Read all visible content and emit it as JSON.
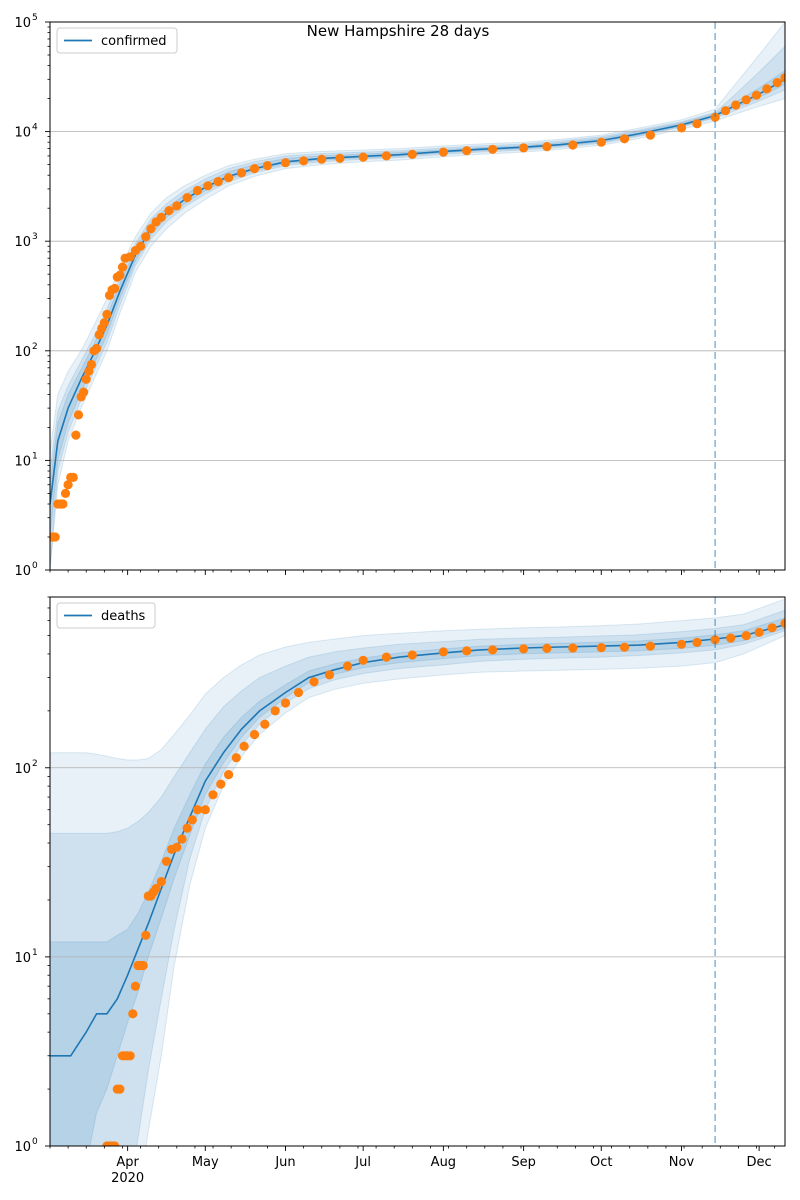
{
  "title": "New Hampshire 28 days",
  "colors": {
    "model": "#1f77b4",
    "observed": "#ff7f0e",
    "band": "#1f77b4",
    "grid": "#b0b0b0",
    "forecast_line": "#1f77b4"
  },
  "chart_data": [
    {
      "type": "line",
      "yscale": "log",
      "ylim": [
        1,
        100000
      ],
      "xlim": [
        "2020-03-02",
        "2020-12-11"
      ],
      "forecast_start": "2020-11-14",
      "x_tick_labels": [
        "Apr",
        "May",
        "Jun",
        "Jul",
        "Aug",
        "Sep",
        "Oct",
        "Nov",
        "Dec"
      ],
      "x_ticks": [
        "2020-04-01",
        "2020-05-01",
        "2020-06-01",
        "2020-07-01",
        "2020-08-01",
        "2020-09-01",
        "2020-10-01",
        "2020-11-01",
        "2020-12-01"
      ],
      "year_label": "2020",
      "y_tick_labels": [
        "10",
        "10",
        "10",
        "10",
        "10",
        "10"
      ],
      "y_tick_exponents": [
        "0",
        "1",
        "2",
        "3",
        "4",
        "5"
      ],
      "y_ticks": [
        1,
        10,
        100,
        1000,
        10000,
        100000
      ],
      "grid": "y",
      "legend": {
        "label": "confirmed",
        "placement": "top-left"
      },
      "model": {
        "dates": [
          "2020-03-02",
          "2020-03-05",
          "2020-03-09",
          "2020-03-14",
          "2020-03-19",
          "2020-03-24",
          "2020-03-29",
          "2020-04-04",
          "2020-04-10",
          "2020-04-16",
          "2020-04-23",
          "2020-05-01",
          "2020-05-10",
          "2020-05-20",
          "2020-06-01",
          "2020-06-15",
          "2020-07-01",
          "2020-07-15",
          "2020-08-01",
          "2020-08-15",
          "2020-09-01",
          "2020-09-15",
          "2020-10-01",
          "2020-10-15",
          "2020-11-01",
          "2020-11-14",
          "2020-11-20",
          "2020-12-01",
          "2020-12-11"
        ],
        "median": [
          4,
          15,
          30,
          55,
          95,
          170,
          350,
          750,
          1300,
          1800,
          2400,
          3100,
          3900,
          4600,
          5300,
          5700,
          5950,
          6150,
          6600,
          6900,
          7200,
          7600,
          8300,
          9500,
          11500,
          14000,
          16500,
          22000,
          30000
        ],
        "bands": [
          {
            "lower": [
              1,
              6,
              15,
              30,
              55,
              100,
              220,
              520,
              900,
              1300,
              1800,
              2400,
              3200,
              3900,
              4600,
              5000,
              5300,
              5500,
              5900,
              6200,
              6500,
              6900,
              7500,
              8600,
              10500,
              12500,
              14000,
              17000,
              20000
            ],
            "upper": [
              12,
              40,
              65,
              100,
              170,
              300,
              560,
              1100,
              1800,
              2500,
              3200,
              4000,
              4900,
              5600,
              6300,
              6600,
              6800,
              7000,
              7400,
              7700,
              8000,
              8500,
              9300,
              10700,
              12800,
              16000,
              24000,
              50000,
              100000
            ]
          },
          {
            "lower": [
              1,
              8,
              18,
              36,
              65,
              120,
              260,
              600,
              1050,
              1500,
              2050,
              2700,
              3500,
              4200,
              4900,
              5300,
              5600,
              5800,
              6200,
              6500,
              6800,
              7200,
              7800,
              9000,
              11000,
              13300,
              15000,
              19000,
              24000
            ],
            "upper": [
              8,
              28,
              48,
              80,
              135,
              240,
              460,
              950,
              1600,
              2200,
              2900,
              3700,
              4600,
              5300,
              6000,
              6300,
              6500,
              6700,
              7100,
              7400,
              7700,
              8200,
              9000,
              10300,
              12300,
              15000,
              20000,
              35000,
              60000
            ]
          },
          {
            "lower": [
              2,
              10,
              22,
              42,
              75,
              140,
              300,
              660,
              1150,
              1650,
              2200,
              2900,
              3700,
              4400,
              5100,
              5500,
              5750,
              5950,
              6400,
              6700,
              7000,
              7400,
              8000,
              9200,
              11200,
              13600,
              15800,
              20500,
              27000
            ],
            "upper": [
              6,
              22,
              40,
              68,
              115,
              205,
              410,
              860,
              1450,
              2000,
              2650,
              3400,
              4300,
              5000,
              5700,
              6000,
              6250,
              6450,
              6850,
              7150,
              7450,
              7900,
              8700,
              10000,
              12000,
              14600,
              17500,
              25000,
              36000
            ]
          }
        ]
      },
      "observed": {
        "dates": [
          "2020-03-02",
          "2020-03-03",
          "2020-03-04",
          "2020-03-05",
          "2020-03-06",
          "2020-03-07",
          "2020-03-08",
          "2020-03-09",
          "2020-03-10",
          "2020-03-11",
          "2020-03-12",
          "2020-03-13",
          "2020-03-14",
          "2020-03-15",
          "2020-03-16",
          "2020-03-17",
          "2020-03-18",
          "2020-03-19",
          "2020-03-20",
          "2020-03-21",
          "2020-03-22",
          "2020-03-23",
          "2020-03-24",
          "2020-03-25",
          "2020-03-26",
          "2020-03-27",
          "2020-03-28",
          "2020-03-29",
          "2020-03-30",
          "2020-03-31",
          "2020-04-02",
          "2020-04-04",
          "2020-04-06",
          "2020-04-08",
          "2020-04-10",
          "2020-04-12",
          "2020-04-14",
          "2020-04-17",
          "2020-04-20",
          "2020-04-24",
          "2020-04-28",
          "2020-05-02",
          "2020-05-06",
          "2020-05-10",
          "2020-05-15",
          "2020-05-20",
          "2020-05-25",
          "2020-06-01",
          "2020-06-08",
          "2020-06-15",
          "2020-06-22",
          "2020-07-01",
          "2020-07-10",
          "2020-07-20",
          "2020-08-01",
          "2020-08-10",
          "2020-08-20",
          "2020-09-01",
          "2020-09-10",
          "2020-09-20",
          "2020-10-01",
          "2020-10-10",
          "2020-10-20",
          "2020-11-01",
          "2020-11-07",
          "2020-11-14",
          "2020-11-18",
          "2020-11-22",
          "2020-11-26",
          "2020-11-30",
          "2020-12-04",
          "2020-12-08",
          "2020-12-11"
        ],
        "values": [
          2,
          2,
          2,
          4,
          4,
          4,
          5,
          6,
          7,
          7,
          17,
          26,
          38,
          42,
          55,
          65,
          75,
          100,
          105,
          140,
          160,
          180,
          215,
          320,
          360,
          370,
          470,
          490,
          580,
          700,
          720,
          820,
          900,
          1100,
          1300,
          1500,
          1650,
          1900,
          2100,
          2500,
          2900,
          3200,
          3500,
          3800,
          4200,
          4600,
          4900,
          5200,
          5400,
          5600,
          5700,
          5850,
          6000,
          6200,
          6500,
          6700,
          6900,
          7100,
          7300,
          7550,
          8000,
          8600,
          9300,
          10800,
          11800,
          13500,
          15500,
          17500,
          19500,
          21500,
          24500,
          28000,
          31000
        ]
      }
    },
    {
      "type": "line",
      "yscale": "log",
      "ylim": [
        1,
        800
      ],
      "xlim": [
        "2020-03-02",
        "2020-12-11"
      ],
      "forecast_start": "2020-11-14",
      "x_tick_labels": [
        "Apr",
        "May",
        "Jun",
        "Jul",
        "Aug",
        "Sep",
        "Oct",
        "Nov",
        "Dec"
      ],
      "x_ticks": [
        "2020-04-01",
        "2020-05-01",
        "2020-06-01",
        "2020-07-01",
        "2020-08-01",
        "2020-09-01",
        "2020-10-01",
        "2020-11-01",
        "2020-12-01"
      ],
      "year_label": "2020",
      "y_tick_labels": [
        "10",
        "10",
        "10"
      ],
      "y_tick_exponents": [
        "0",
        "1",
        "2"
      ],
      "y_ticks": [
        1,
        10,
        100
      ],
      "grid": "y",
      "legend": {
        "label": "deaths",
        "placement": "top-left"
      },
      "model": {
        "dates": [
          "2020-03-02",
          "2020-03-10",
          "2020-03-16",
          "2020-03-20",
          "2020-03-24",
          "2020-03-28",
          "2020-04-01",
          "2020-04-05",
          "2020-04-09",
          "2020-04-14",
          "2020-04-19",
          "2020-04-25",
          "2020-05-01",
          "2020-05-08",
          "2020-05-15",
          "2020-05-22",
          "2020-06-01",
          "2020-06-10",
          "2020-06-20",
          "2020-07-01",
          "2020-07-15",
          "2020-08-01",
          "2020-08-15",
          "2020-09-01",
          "2020-09-15",
          "2020-10-01",
          "2020-10-15",
          "2020-11-01",
          "2020-11-14",
          "2020-11-25",
          "2020-12-11"
        ],
        "median": [
          3,
          3,
          4,
          5,
          5,
          6,
          8,
          11,
          15,
          23,
          35,
          55,
          85,
          120,
          160,
          200,
          250,
          300,
          330,
          360,
          385,
          405,
          420,
          430,
          435,
          440,
          445,
          460,
          480,
          500,
          570
        ],
        "bands": [
          {
            "lower": [
              0.5,
              0.5,
              0.5,
              0.5,
              0.5,
              0.5,
              0.5,
              0.5,
              1.2,
              3,
              9,
              24,
              48,
              80,
              115,
              150,
              195,
              235,
              260,
              280,
              295,
              310,
              320,
              325,
              328,
              332,
              336,
              345,
              360,
              400,
              500
            ],
            "upper": [
              120,
              120,
              120,
              118,
              115,
              112,
              110,
              110,
              112,
              125,
              150,
              190,
              245,
              300,
              350,
              395,
              435,
              460,
              480,
              500,
              515,
              530,
              540,
              550,
              555,
              565,
              575,
              600,
              620,
              650,
              780
            ]
          },
          {
            "lower": [
              0.5,
              0.5,
              0.5,
              0.5,
              0.5,
              0.5,
              0.5,
              1.1,
              2.5,
              6,
              14,
              33,
              60,
              95,
              132,
              170,
              220,
              262,
              292,
              315,
              335,
              350,
              365,
              375,
              380,
              385,
              392,
              405,
              420,
              450,
              530
            ],
            "upper": [
              45,
              45,
              45,
              45,
              45,
              46,
              48,
              52,
              58,
              70,
              90,
              120,
              160,
              210,
              255,
              300,
              345,
              385,
              410,
              430,
              450,
              465,
              478,
              485,
              490,
              498,
              505,
              525,
              545,
              570,
              680
            ]
          },
          {
            "lower": [
              0.5,
              0.5,
              0.8,
              1.5,
              2,
              3,
              4.5,
              6.5,
              10,
              16,
              26,
              44,
              72,
              106,
              145,
              185,
              235,
              282,
              312,
              338,
              360,
              378,
              392,
              400,
              405,
              410,
              415,
              428,
              445,
              470,
              545
            ],
            "upper": [
              12,
              12,
              12,
              12,
              12,
              13,
              14,
              17,
              22,
              32,
              48,
              72,
              105,
              145,
              185,
              225,
              275,
              325,
              355,
              380,
              405,
              425,
              440,
              450,
              455,
              462,
              468,
              485,
              505,
              530,
              620
            ]
          }
        ]
      },
      "observed": {
        "dates": [
          "2020-03-24",
          "2020-03-25",
          "2020-03-26",
          "2020-03-27",
          "2020-03-28",
          "2020-03-29",
          "2020-03-30",
          "2020-03-31",
          "2020-04-01",
          "2020-04-02",
          "2020-04-03",
          "2020-04-04",
          "2020-04-05",
          "2020-04-06",
          "2020-04-07",
          "2020-04-08",
          "2020-04-09",
          "2020-04-10",
          "2020-04-11",
          "2020-04-12",
          "2020-04-14",
          "2020-04-16",
          "2020-04-18",
          "2020-04-20",
          "2020-04-22",
          "2020-04-24",
          "2020-04-26",
          "2020-04-28",
          "2020-05-01",
          "2020-05-04",
          "2020-05-07",
          "2020-05-10",
          "2020-05-13",
          "2020-05-16",
          "2020-05-20",
          "2020-05-24",
          "2020-05-28",
          "2020-06-01",
          "2020-06-06",
          "2020-06-12",
          "2020-06-18",
          "2020-06-25",
          "2020-07-01",
          "2020-07-10",
          "2020-07-20",
          "2020-08-01",
          "2020-08-10",
          "2020-08-20",
          "2020-09-01",
          "2020-09-10",
          "2020-09-20",
          "2020-10-01",
          "2020-10-10",
          "2020-10-20",
          "2020-11-01",
          "2020-11-07",
          "2020-11-14",
          "2020-11-20",
          "2020-11-26",
          "2020-12-01",
          "2020-12-06",
          "2020-12-11"
        ],
        "values": [
          1,
          1,
          1,
          1,
          2,
          2,
          3,
          3,
          3,
          3,
          5,
          7,
          9,
          9,
          9,
          13,
          21,
          21,
          22,
          23,
          25,
          32,
          37,
          38,
          42,
          48,
          53,
          60,
          60,
          72,
          82,
          92,
          113,
          130,
          150,
          170,
          200,
          220,
          250,
          285,
          310,
          345,
          370,
          385,
          395,
          410,
          415,
          420,
          425,
          428,
          430,
          432,
          434,
          440,
          450,
          460,
          475,
          485,
          500,
          520,
          550,
          580
        ]
      }
    }
  ]
}
